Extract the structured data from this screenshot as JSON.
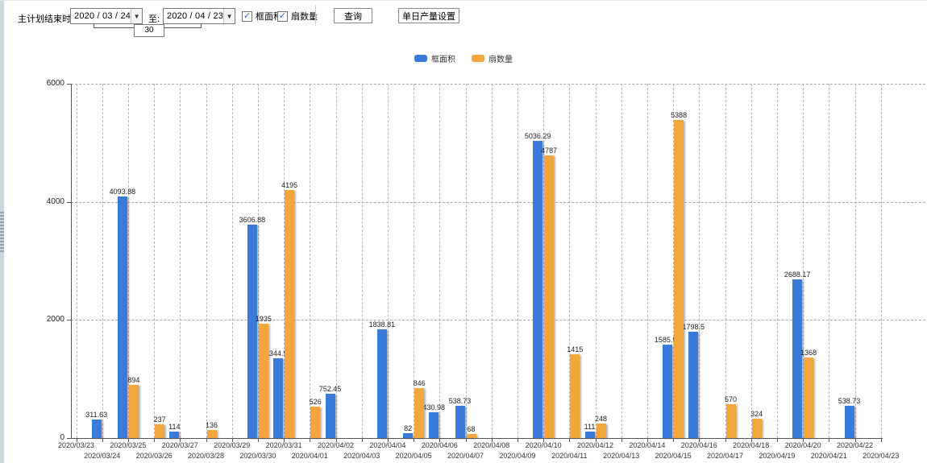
{
  "toolbar": {
    "plan_end_label": "主计划结束时间:",
    "date_from": "2020 / 03 / 24",
    "to_label": "至:",
    "date_to": "2020 / 04 / 23",
    "interval_days": "30",
    "checkboxes": [
      {
        "label": "框面积",
        "checked": true
      },
      {
        "label": "扇数量",
        "checked": true
      }
    ],
    "query_button": "查询",
    "daily_output_button": "单日产量设置"
  },
  "legend": [
    {
      "label": "框面积",
      "color": "#3a7bd9"
    },
    {
      "label": "扇数量",
      "color": "#f2a63c"
    }
  ],
  "colors": {
    "frame_area": "#3a7bd9",
    "sash_count": "#f2a63c"
  },
  "chart_data": {
    "type": "bar",
    "title": "",
    "xlabel": "",
    "ylabel": "",
    "ylim": [
      0,
      6000
    ],
    "yticks": [
      0,
      2000,
      4000,
      6000
    ],
    "grid": true,
    "legend_position": "top",
    "categories": [
      "2020/03/23",
      "2020/03/24",
      "2020/03/25",
      "2020/03/26",
      "2020/03/27",
      "2020/03/28",
      "2020/03/29",
      "2020/03/30",
      "2020/03/31",
      "2020/04/01",
      "2020/04/02",
      "2020/04/03",
      "2020/04/04",
      "2020/04/05",
      "2020/04/06",
      "2020/04/07",
      "2020/04/08",
      "2020/04/09",
      "2020/04/10",
      "2020/04/11",
      "2020/04/12",
      "2020/04/13",
      "2020/04/14",
      "2020/04/15",
      "2020/04/16",
      "2020/04/17",
      "2020/04/18",
      "2020/04/19",
      "2020/04/20",
      "2020/04/21",
      "2020/04/22",
      "2020/04/23"
    ],
    "series": [
      {
        "name": "框面积",
        "color": "#3a7bd9",
        "values": [
          null,
          311.63,
          4093.88,
          null,
          114,
          null,
          null,
          3606.88,
          1344.95,
          null,
          752.45,
          null,
          1838.81,
          82,
          430.98,
          538.73,
          null,
          null,
          5036.29,
          null,
          111,
          null,
          null,
          1585.96,
          1798.5,
          null,
          null,
          null,
          2688.17,
          null,
          538.73,
          null
        ]
      },
      {
        "name": "扇数量",
        "color": "#f2a63c",
        "values": [
          null,
          null,
          894,
          237,
          null,
          136,
          null,
          1935,
          4195,
          526,
          null,
          null,
          null,
          846,
          null,
          68,
          null,
          null,
          4787,
          1415,
          248,
          null,
          null,
          5388,
          null,
          570,
          324,
          null,
          1368,
          null,
          null,
          null
        ]
      }
    ]
  }
}
